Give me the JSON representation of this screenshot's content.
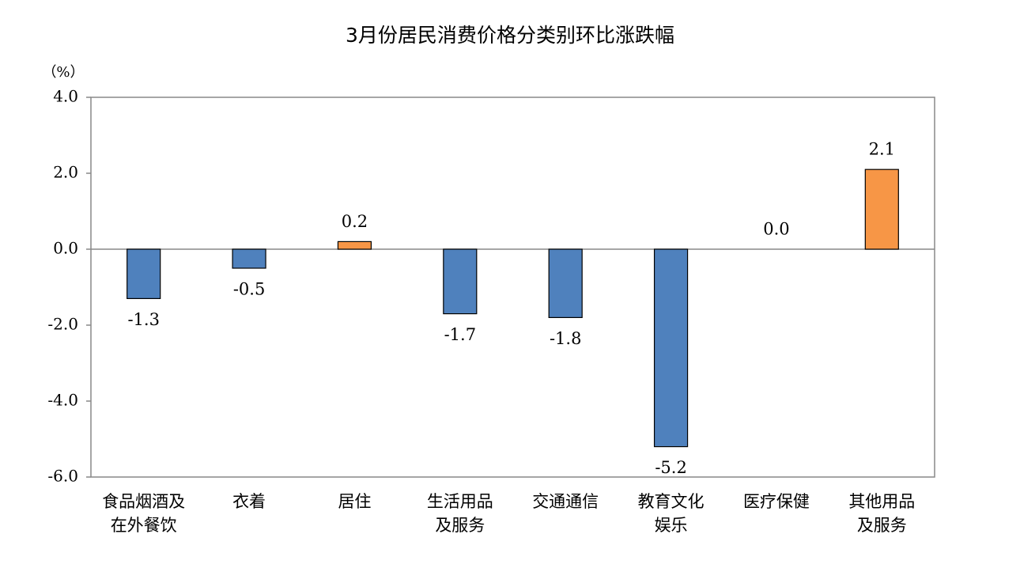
{
  "chart_data": {
    "type": "bar",
    "title": "3月份居民消费价格分类别环比涨跌幅",
    "y_unit": "（%）",
    "categories": [
      "食品烟酒及\n在外餐饮",
      "衣着",
      "居住",
      "生活用品\n及服务",
      "交通通信",
      "教育文化\n娱乐",
      "医疗保健",
      "其他用品\n及服务"
    ],
    "values": [
      -1.3,
      -0.5,
      0.2,
      -1.7,
      -1.8,
      -5.2,
      0.0,
      2.1
    ],
    "value_labels": [
      "-1.3",
      "-0.5",
      "0.2",
      "-1.7",
      "-1.8",
      "-5.2",
      "0.0",
      "2.1"
    ],
    "colors": [
      "#4f81bd",
      "#4f81bd",
      "#f79646",
      "#4f81bd",
      "#4f81bd",
      "#4f81bd",
      "#4f81bd",
      "#f79646"
    ],
    "ylim": [
      -6,
      4
    ],
    "yticks": [
      {
        "value": -6,
        "label": "-6.0"
      },
      {
        "value": -4,
        "label": "-4.0"
      },
      {
        "value": -2,
        "label": "-2.0"
      },
      {
        "value": 0,
        "label": "0.0"
      },
      {
        "value": 2,
        "label": "2.0"
      },
      {
        "value": 4,
        "label": "4.0"
      }
    ]
  }
}
